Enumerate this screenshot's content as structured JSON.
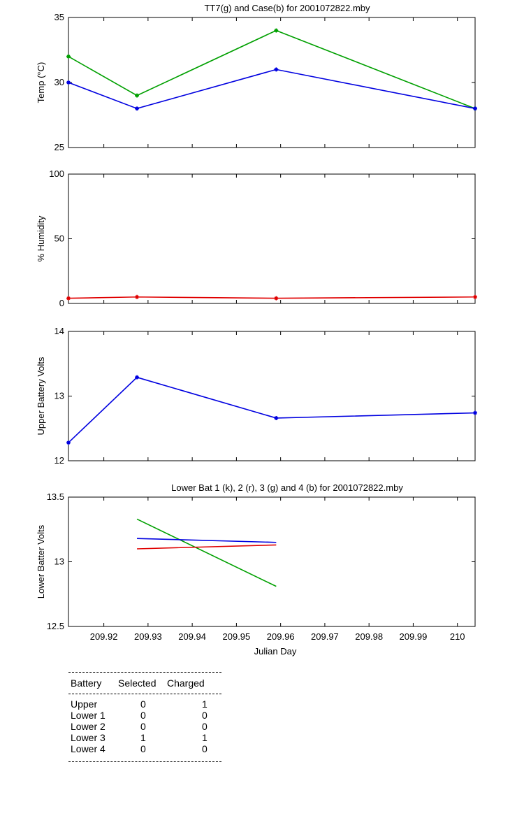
{
  "chart_data": [
    {
      "type": "line",
      "title": "TT7(g) and Case(b) for 2001072822.mby",
      "ylabel": "Temp  (°C)",
      "xlim": [
        209.912,
        210.004
      ],
      "ylim": [
        25,
        35
      ],
      "yticks": [
        "25",
        "30",
        "35"
      ],
      "series": [
        {
          "color": "#00a000",
          "points": [
            [
              209.912,
              32
            ],
            [
              209.9275,
              29
            ],
            [
              209.959,
              34
            ],
            [
              210.004,
              28
            ]
          ]
        },
        {
          "color": "#0000e0",
          "points": [
            [
              209.912,
              30
            ],
            [
              209.9275,
              28
            ],
            [
              209.959,
              31
            ],
            [
              210.004,
              28
            ]
          ]
        }
      ]
    },
    {
      "type": "line",
      "title": "",
      "ylabel": "% Humidity",
      "xlim": [
        209.912,
        210.004
      ],
      "ylim": [
        0,
        100
      ],
      "yticks": [
        "0",
        "50",
        "100"
      ],
      "series": [
        {
          "color": "#e00000",
          "points": [
            [
              209.912,
              4
            ],
            [
              209.9275,
              5
            ],
            [
              209.959,
              4
            ],
            [
              210.004,
              5
            ]
          ]
        }
      ]
    },
    {
      "type": "line",
      "title": "",
      "ylabel": "Upper Battery Volts",
      "xlim": [
        209.912,
        210.004
      ],
      "ylim": [
        12,
        14
      ],
      "yticks": [
        "12",
        "13",
        "14"
      ],
      "series": [
        {
          "color": "#0000e0",
          "points": [
            [
              209.912,
              12.28
            ],
            [
              209.9275,
              13.29
            ],
            [
              209.959,
              12.66
            ],
            [
              210.004,
              12.74
            ]
          ]
        }
      ]
    },
    {
      "type": "line",
      "title": "Lower Bat 1 (k), 2 (r), 3 (g) and 4 (b) for 2001072822.mby",
      "ylabel": "Lower Batter Volts",
      "xlabel": "Julian Day",
      "xlim": [
        209.912,
        210.004
      ],
      "ylim": [
        12.5,
        13.5
      ],
      "yticks": [
        "12.5",
        "13",
        "13.5"
      ],
      "xticks": [
        "209.92",
        "209.93",
        "209.94",
        "209.95",
        "209.96",
        "209.97",
        "209.98",
        "209.99",
        "210"
      ],
      "series": [
        {
          "color": "#00a000",
          "points": [
            [
              209.9275,
              13.33
            ],
            [
              209.959,
              12.81
            ]
          ]
        },
        {
          "color": "#e00000",
          "points": [
            [
              209.9275,
              13.1
            ],
            [
              209.959,
              13.13
            ]
          ]
        },
        {
          "color": "#0000e0",
          "points": [
            [
              209.9275,
              13.18
            ],
            [
              209.959,
              13.15
            ]
          ]
        }
      ]
    }
  ],
  "battery_table": {
    "headers": [
      "Battery",
      "Selected",
      "Charged"
    ],
    "rows": [
      [
        "Upper",
        "0",
        "1"
      ],
      [
        "Lower 1",
        "0",
        "0"
      ],
      [
        "Lower 2",
        "0",
        "0"
      ],
      [
        "Lower 3",
        "1",
        "1"
      ],
      [
        "Lower 4",
        "0",
        "0"
      ]
    ]
  }
}
